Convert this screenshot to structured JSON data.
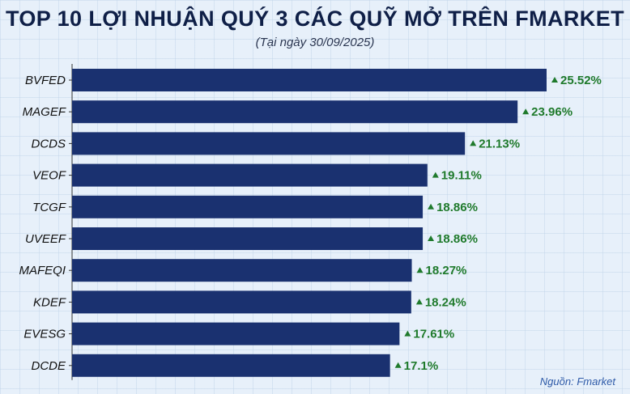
{
  "header": {
    "title": "TOP 10 LỢI NHUẬN QUÝ 3 CÁC QUỸ MỞ TRÊN FMARKET",
    "subtitle": "(Tại ngày 30/09/2025)"
  },
  "footer": {
    "source": "Nguồn: Fmarket"
  },
  "colors": {
    "bar": "#1a3170",
    "value_text": "#1f7a2c",
    "arrow": "#1f7a2c",
    "axis": "#333333"
  },
  "chart_data": {
    "type": "bar",
    "orientation": "horizontal",
    "title": "TOP 10 LỢI NHUẬN QUÝ 3 CÁC QUỸ MỞ TRÊN FMARKET",
    "subtitle": "(Tại ngày 30/09/2025)",
    "categories": [
      "BVFED",
      "MAGEF",
      "DCDS",
      "VEOF",
      "TCGF",
      "UVEEF",
      "MAFEQI",
      "KDEF",
      "EVESG",
      "DCDE"
    ],
    "values": [
      25.52,
      23.96,
      21.13,
      19.11,
      18.86,
      18.86,
      18.27,
      18.24,
      17.61,
      17.1
    ],
    "labels": [
      "25.52%",
      "23.96%",
      "21.13%",
      "19.11%",
      "18.86%",
      "18.86%",
      "18.27%",
      "18.24%",
      "17.61%",
      "17.1%"
    ],
    "unit": "%",
    "grid": false,
    "legend": "none"
  }
}
